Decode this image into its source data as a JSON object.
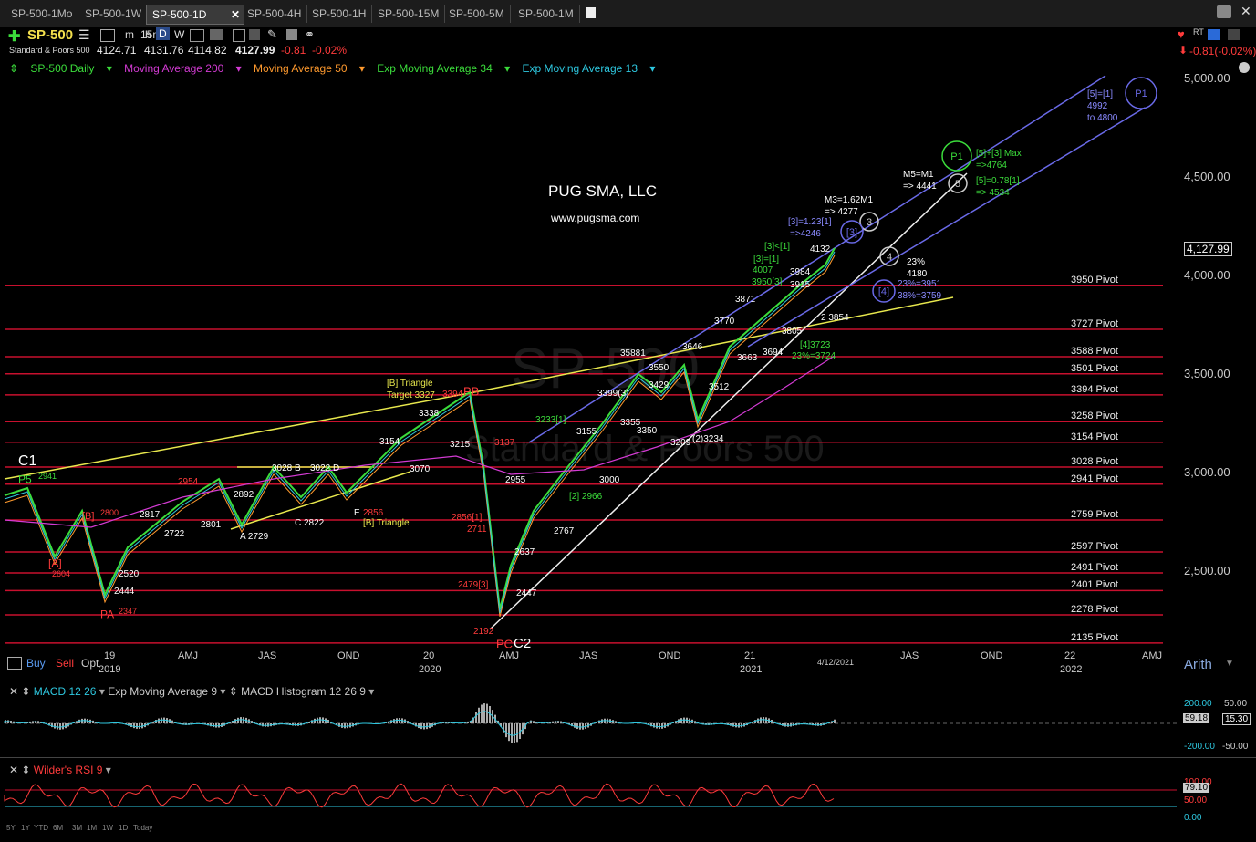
{
  "tabs": [
    {
      "label": "SP-500-1Mo"
    },
    {
      "label": "SP-500-1W"
    },
    {
      "label": "SP-500-1D"
    },
    {
      "label": "SP-500-4H"
    },
    {
      "label": "SP-500-1H"
    },
    {
      "label": "SP-500-15M"
    },
    {
      "label": "SP-500-5M"
    },
    {
      "label": "SP-500-1M"
    }
  ],
  "symbol": {
    "name": "SP-500",
    "full_name": "Standard & Poors 500"
  },
  "intervals": {
    "m": "m",
    "m15": "15m",
    "h": "h",
    "d": "D",
    "w": "W"
  },
  "quote": {
    "open": "4124.71",
    "high": "4131.76",
    "low": "4114.82",
    "last": "4127.99",
    "change": "-0.81",
    "pct": "-0.02%",
    "right_change": "-0.81(-0.02%)"
  },
  "studies": {
    "main": "SP-500 Daily",
    "ma200": "Moving Average 200",
    "ma50": "Moving Average 50",
    "ema34": "Exp Moving Average 34",
    "ema13": "Exp Moving Average 13"
  },
  "watermark": {
    "title": "PUG SMA, LLC",
    "url": "www.pugsma.com",
    "sym": "SP-500",
    "name": "Standard & Poors 500"
  },
  "price_axis": {
    "ticks": [
      "5,000.00",
      "4,500.00",
      "4,000.00",
      "3,500.00",
      "3,000.00",
      "2,500.00"
    ],
    "current": "4,127.99",
    "scale": "Arith"
  },
  "pivots": [
    "3950 Pivot",
    "3727 Pivot",
    "3588 Pivot",
    "3501 Pivot",
    "3394 Pivot",
    "3258 Pivot",
    "3154 Pivot",
    "3028 Pivot",
    "2941 Pivot",
    "2759 Pivot",
    "2597 Pivot",
    "2491 Pivot",
    "2401 Pivot",
    "2278 Pivot",
    "2135 Pivot"
  ],
  "x_axis": [
    "19",
    "AMJ",
    "JAS",
    "OND",
    "20",
    "AMJ",
    "JAS",
    "OND",
    "21",
    "4/12/2021",
    "JAS",
    "OND",
    "22",
    "AMJ"
  ],
  "x_axis_years": [
    "2019",
    "2020",
    "2021",
    "2022"
  ],
  "trade": {
    "buy": "Buy",
    "sell": "Sell",
    "opt": "Opt"
  },
  "annotations": {
    "c1": "C1",
    "p5": "P5",
    "p5v": "2941",
    "a_bracket": "[A]",
    "a_v": "2604",
    "b_bracket": "[B]",
    "b_v": "2800",
    "pa": "PA",
    "pa_v": "2347",
    "v2520": "2520",
    "v2444": "2444",
    "v2817": "2817",
    "v2722": "2722",
    "v2801": "2801",
    "v2892": "2892",
    "v2729": "A 2729",
    "v3028": "3028 B",
    "v3022": "3022 D",
    "v2822": "C 2822",
    "v2954": "2954",
    "v2856": "2856",
    "e_lbl": "E",
    "tri": "[B] Triangle",
    "v3154": "3154",
    "v3070": "3070",
    "tri_target": "[B] Triangle",
    "tri_target2": "Target 3327",
    "v3338": "3338",
    "v3394": "3394",
    "pb": "PB",
    "v3215": "3215",
    "v3137": "3137",
    "v2856b": "2856[1]",
    "v2711": "2711",
    "v2479": "2479[3]",
    "v2192": "2192",
    "pc": "PC",
    "c2": "C2",
    "v2955": "2955",
    "v2637": "2637",
    "v2447": "2447",
    "v2767": "2767",
    "v3233": "3233[1]",
    "v2966": "[2] 2966",
    "v3155": "3155",
    "v3000": "3000",
    "v3399": "3399(3)",
    "v3355": "3355",
    "v3350": "3350",
    "v3429": "3429",
    "v3550": "3550",
    "v35881": "35881",
    "v3209": "3209",
    "v3234": "(2)3234",
    "v3512": "3512",
    "v3646": "3646",
    "v3770": "3770",
    "v3871": "3871",
    "v3663": "3663",
    "v3694": "3694",
    "v3805": "3805",
    "v3723": "[4]3723",
    "v3724": "23%=3724",
    "v3854": "2 3854",
    "v3984": "3984",
    "v3915": "3915",
    "v3950": "3950[3]",
    "v4007": "4007",
    "v4132": "4132",
    "m3": "M3=1.62M1",
    "m3v": "=> 4277",
    "b3": "[3]=1.23[1]",
    "b3v": "=>4246",
    "b3lt": "[3]<[1]",
    "b3e": "[3]=[1]",
    "m5": "M5=M1",
    "m5v": "=> 4441",
    "p1max": "[5]+[3] Max",
    "p1maxv": "=>4764",
    "p1b": "[5]=0.78[1]",
    "p1bv": "=> 4534",
    "top1": "[5]=[1]",
    "top2": "4992",
    "top3": "to 4800",
    "w4": "23%",
    "w4v": "4180",
    "b4a": "23%=3951",
    "b4b": "38%=3759",
    "c3": "3",
    "c4": "4",
    "c5": "5",
    "p1": "P1",
    "p1sub": "[5]",
    "b3c": "[3]",
    "b4c": "[4]"
  },
  "macd": {
    "label": "MACD 12 26",
    "ema": "Exp Moving Average 9",
    "hist": "MACD Histogram 12 26 9",
    "ticks": [
      "200.00",
      "-200.00"
    ],
    "v1": "59.18",
    "right_top": "50.00",
    "right_v": "15.30",
    "right_bot": "-50.00"
  },
  "rsi": {
    "label": "Wilder's RSI 9",
    "ticks": [
      "100.00",
      "50.00",
      "0.00"
    ],
    "v": "79.10"
  },
  "timeframes": [
    "5Y",
    "1Y",
    "YTD",
    "6M",
    "3M",
    "1M",
    "1W",
    "1D",
    "Today"
  ],
  "colors": {
    "red": "#ff3b3b",
    "green": "#3bdc3b",
    "magenta": "#d43bd4",
    "orange": "#ff9a2e",
    "cyan": "#2ec8e0",
    "yellow": "#e8e84d",
    "blue": "#6a6ae8",
    "pivot": "#c8102e"
  }
}
